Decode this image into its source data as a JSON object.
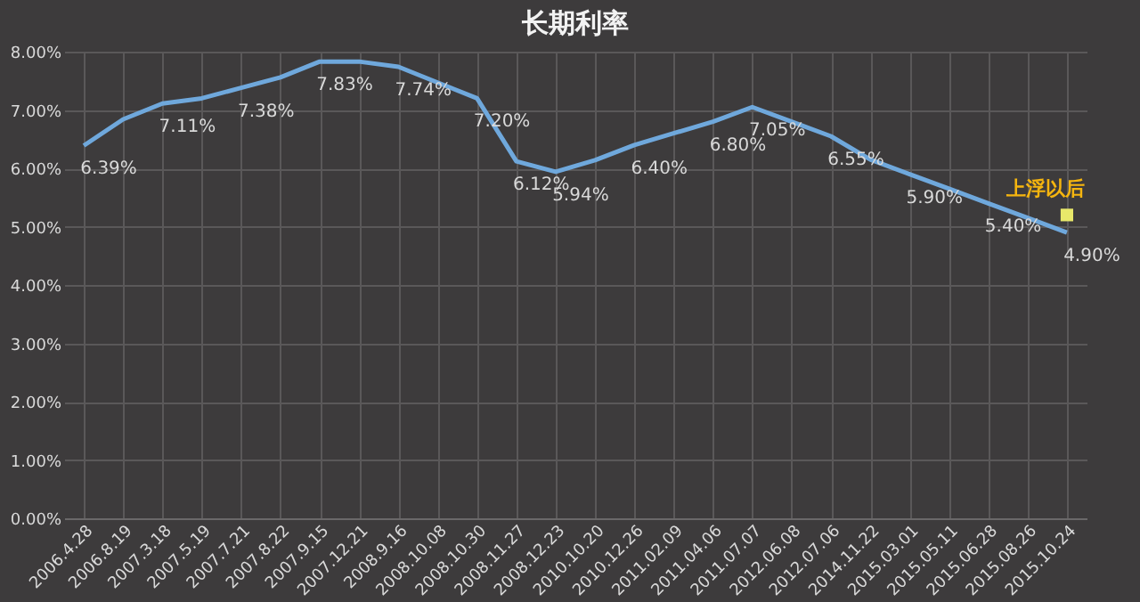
{
  "chart_data": {
    "type": "line",
    "title": "长期利率",
    "categories": [
      "2006.4.28",
      "2006.8.19",
      "2007.3.18",
      "2007.5.19",
      "2007.7.21",
      "2007.8.22",
      "2007.9.15",
      "2007.12.21",
      "2008.9.16",
      "2008.10.08",
      "2008.10.30",
      "2008.11.27",
      "2008.12.23",
      "2010.10.20",
      "2010.12.26",
      "2011.02.09",
      "2011.04.06",
      "2011.07.07",
      "2012.06.08",
      "2012.07.06",
      "2014.11.22",
      "2015.03.01",
      "2015.05.11",
      "2015.06.28",
      "2015.08.26",
      "2015.10.24"
    ],
    "series": [
      {
        "color": "#6fa8dc",
        "values": [
          6.39,
          6.84,
          7.11,
          7.2,
          7.38,
          7.56,
          7.83,
          7.83,
          7.74,
          7.47,
          7.2,
          6.12,
          5.94,
          6.14,
          6.4,
          6.6,
          6.8,
          7.05,
          6.8,
          6.55,
          6.15,
          5.9,
          5.65,
          5.4,
          5.15,
          4.9
        ],
        "value_labels": [
          "6.39%",
          null,
          "7.11%",
          null,
          "7.38%",
          null,
          "7.83%",
          null,
          "7.74%",
          null,
          "7.20%",
          "6.12%",
          "5.94%",
          null,
          "6.40%",
          null,
          "6.80%",
          "7.05%",
          null,
          "6.55%",
          null,
          "5.90%",
          null,
          "5.40%",
          null,
          "4.90%"
        ]
      }
    ],
    "ylim": [
      0,
      8
    ],
    "yticks": [
      {
        "value": 0,
        "label": "0.00%"
      },
      {
        "value": 1,
        "label": "1.00%"
      },
      {
        "value": 2,
        "label": "2.00%"
      },
      {
        "value": 3,
        "label": "3.00%"
      },
      {
        "value": 4,
        "label": "4.00%"
      },
      {
        "value": 5,
        "label": "5.00%"
      },
      {
        "value": 6,
        "label": "6.00%"
      },
      {
        "value": 7,
        "label": "7.00%"
      },
      {
        "value": 8,
        "label": "8.00%"
      }
    ],
    "grid": true,
    "marker": "none",
    "line_style": "solid",
    "annotations": [
      {
        "text": "上浮以后",
        "x": "2015.10.24",
        "y": 5.2
      }
    ]
  }
}
